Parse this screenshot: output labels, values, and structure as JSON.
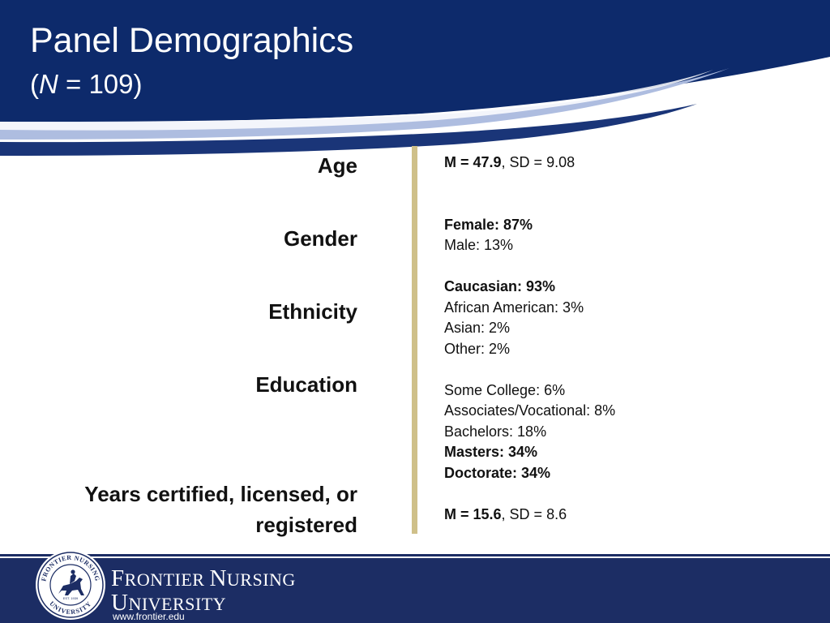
{
  "header": {
    "title": "Panel Demographics",
    "subtitle_open": "(",
    "subtitle_n": "N",
    "subtitle_rest": " = 109)"
  },
  "labels": {
    "age": "Age",
    "gender": "Gender",
    "ethnicity": "Ethnicity",
    "education": "Education",
    "years_line1": "Years certified, licensed, or",
    "years_line2": "registered"
  },
  "values": {
    "age_mean": "M = 47.9",
    "age_sd": ", SD = 9.08",
    "gender_female": "Female: 87%",
    "gender_male": "Male: 13%",
    "eth_caucasian": "Caucasian: 93%",
    "eth_african_american": "African American: 3%",
    "eth_asian": "Asian: 2%",
    "eth_other": "Other: 2%",
    "edu_some_college": "Some College: 6%",
    "edu_associates": "Associates/Vocational: 8%",
    "edu_bachelors": "Bachelors: 18%",
    "edu_masters": "Masters: 34%",
    "edu_doctorate": "Doctorate: 34%",
    "years_mean": "M = 15.6",
    "years_sd": ", SD = 8.6"
  },
  "footer": {
    "brand_line1_first": "F",
    "brand_line1_rest": "RONTIER ",
    "brand_line1_second": "N",
    "brand_line1_end": "URSING",
    "brand_line2_first": "U",
    "brand_line2_rest": "NIVERSITY",
    "url": "www.frontier.edu",
    "seal_top_text": "FRONTIER NURSING",
    "seal_bottom_text": "UNIVERSITY",
    "seal_est": "EST. 1939"
  },
  "colors": {
    "header_navy": "#0d2a6b",
    "swoosh_light": "#aebde0",
    "divider_gold": "#cfc089",
    "footer_navy": "#1c2d64"
  }
}
